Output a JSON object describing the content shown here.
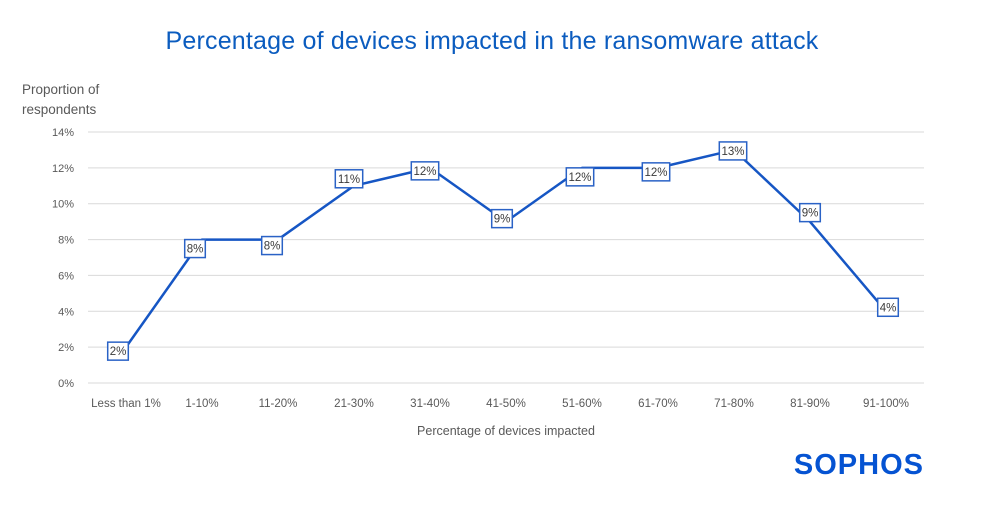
{
  "colors": {
    "title": "#0B5CBF",
    "line": "#1656C4",
    "label_border": "#2A62C6",
    "label_text": "#3B3B3B",
    "grid": "#D9D9D9",
    "axis_text": "#595959",
    "logo": "#0553D2"
  },
  "footer": {
    "logo_text": "SOPHOS"
  },
  "chart_data": {
    "type": "line",
    "title": "Percentage of devices impacted in the ransomware attack",
    "xlabel": "Percentage of devices impacted",
    "ylabel": "Proportion of\nrespondents",
    "categories": [
      "Less than 1%",
      "1-10%",
      "11-20%",
      "21-30%",
      "31-40%",
      "41-50%",
      "51-60%",
      "61-70%",
      "71-80%",
      "81-90%",
      "91-100%"
    ],
    "values": [
      2,
      8,
      8,
      11,
      12,
      9,
      12,
      12,
      13,
      9,
      4
    ],
    "point_labels": [
      "2%",
      "8%",
      "8%",
      "11%",
      "12%",
      "9%",
      "12%",
      "12%",
      "13%",
      "9%",
      "4%"
    ],
    "ylim": [
      0,
      14
    ],
    "ytick_values": [
      0,
      2,
      4,
      6,
      8,
      10,
      12,
      14
    ],
    "ytick_labels": [
      "0%",
      "2%",
      "4%",
      "6%",
      "8%",
      "10%",
      "12%",
      "14%"
    ],
    "grid": "horizontal",
    "legend": "none"
  }
}
